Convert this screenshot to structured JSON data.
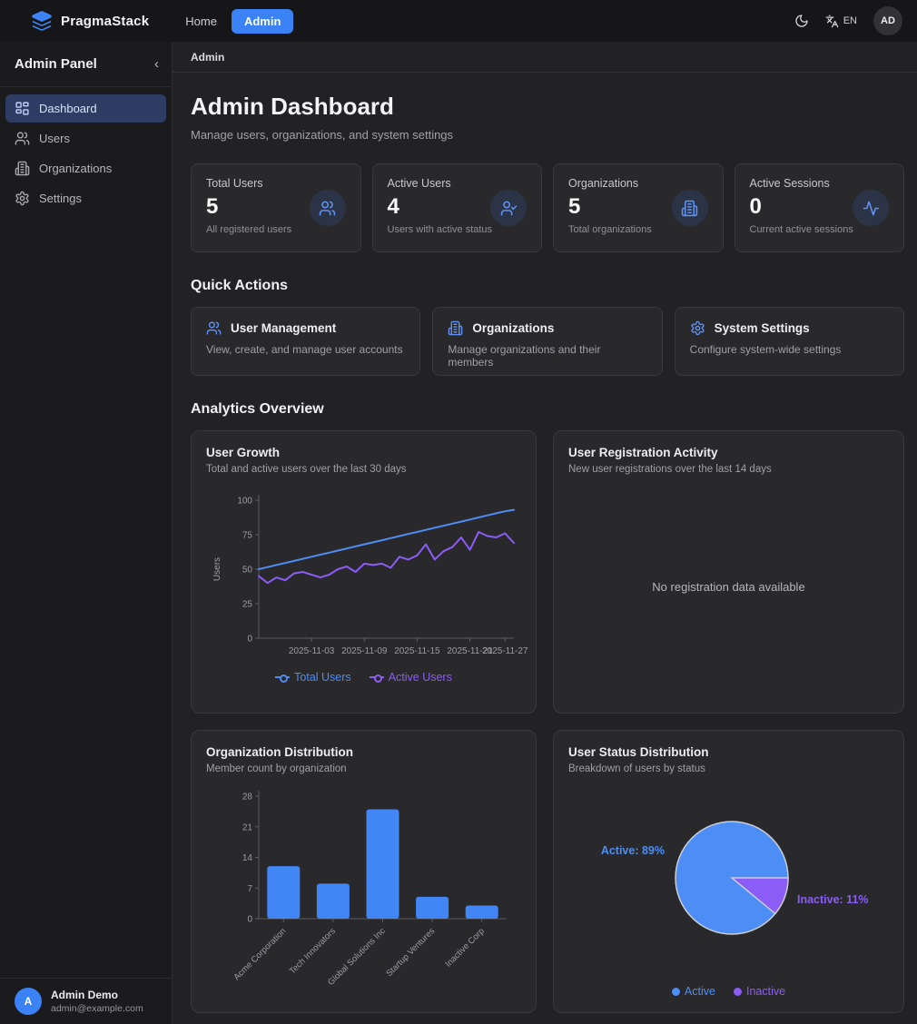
{
  "colors": {
    "accent": "#3b82f6",
    "chart_blue": "#4e8cf2",
    "chart_purple": "#8b5cf6",
    "bar_blue": "#4285f4",
    "pie_stroke": "#c9cdd6"
  },
  "navbar": {
    "brand": "PragmaStack",
    "links": [
      {
        "label": "Home",
        "active": false
      },
      {
        "label": "Admin",
        "active": true
      }
    ],
    "language": "EN",
    "avatar_initials": "AD"
  },
  "sidebar": {
    "title": "Admin Panel",
    "collapse_icon": "‹",
    "items": [
      {
        "label": "Dashboard",
        "icon": "dashboard-grid-icon",
        "active": true
      },
      {
        "label": "Users",
        "icon": "users-icon",
        "active": false
      },
      {
        "label": "Organizations",
        "icon": "building-icon",
        "active": false
      },
      {
        "label": "Settings",
        "icon": "gear-icon",
        "active": false
      }
    ],
    "user": {
      "initial": "A",
      "name": "Admin Demo",
      "email": "admin@example.com"
    }
  },
  "breadcrumb": "Admin",
  "header": {
    "title": "Admin Dashboard",
    "subtitle": "Manage users, organizations, and system settings"
  },
  "stats": [
    {
      "label": "Total Users",
      "value": "5",
      "caption": "All registered users",
      "icon": "users-icon"
    },
    {
      "label": "Active Users",
      "value": "4",
      "caption": "Users with active status",
      "icon": "user-check-icon"
    },
    {
      "label": "Organizations",
      "value": "5",
      "caption": "Total organizations",
      "icon": "building-icon"
    },
    {
      "label": "Active Sessions",
      "value": "0",
      "caption": "Current active sessions",
      "icon": "activity-icon"
    }
  ],
  "quick_actions": {
    "heading": "Quick Actions",
    "cards": [
      {
        "title": "User Management",
        "caption": "View, create, and manage user accounts",
        "icon": "users-icon"
      },
      {
        "title": "Organizations",
        "caption": "Manage organizations and their members",
        "icon": "building-icon"
      },
      {
        "title": "System Settings",
        "caption": "Configure system-wide settings",
        "icon": "gear-icon"
      }
    ]
  },
  "analytics_heading": "Analytics Overview",
  "chart_data": [
    {
      "type": "line",
      "title": "User Growth",
      "subtitle": "Total and active users over the last 30 days",
      "ylabel": "Users",
      "ylim": [
        0,
        100
      ],
      "yticks": [
        0,
        25,
        50,
        75,
        100
      ],
      "xticks": [
        "2025-11-03",
        "2025-11-09",
        "2025-11-15",
        "2025-11-21",
        "2025-11-27"
      ],
      "xtick_positions": [
        6,
        12,
        18,
        24,
        28
      ],
      "legend_position": "bottom",
      "grid": false,
      "series": [
        {
          "name": "Total Users",
          "color": "#4e8cf2",
          "values": [
            50,
            51.5,
            53,
            54.5,
            56,
            57.5,
            59,
            60.5,
            62,
            63.5,
            65,
            66.5,
            68,
            69.5,
            71,
            72.5,
            74,
            75.5,
            77,
            78.5,
            80,
            81.5,
            83,
            84.5,
            86,
            87.5,
            89,
            90.5,
            92,
            93
          ]
        },
        {
          "name": "Active Users",
          "color": "#8b5cf6",
          "values": [
            45,
            40,
            44,
            42,
            47,
            48,
            46,
            44,
            46,
            50,
            52,
            48,
            54,
            53,
            54,
            51,
            59,
            57,
            60,
            68,
            57,
            63,
            66,
            73,
            64,
            77,
            74,
            73,
            76,
            69
          ]
        }
      ]
    },
    {
      "type": "empty",
      "title": "User Registration Activity",
      "subtitle": "New user registrations over the last 14 days",
      "empty_text": "No registration data available"
    },
    {
      "type": "bar",
      "title": "Organization Distribution",
      "subtitle": "Member count by organization",
      "categories": [
        "Acme Corporation",
        "Tech Innovators",
        "Global Solutions Inc",
        "Startup Ventures",
        "Inactive Corp"
      ],
      "values": [
        12,
        8,
        25,
        5,
        3
      ],
      "ylim": [
        0,
        28
      ],
      "yticks": [
        0,
        7,
        14,
        21,
        28
      ],
      "bar_color": "#4285f4",
      "grid": false
    },
    {
      "type": "pie",
      "title": "User Status Distribution",
      "subtitle": "Breakdown of users by status",
      "slices": [
        {
          "label": "Active",
          "pct": 89,
          "color": "#4d8df6"
        },
        {
          "label": "Inactive",
          "pct": 11,
          "color": "#8b5cf6"
        }
      ],
      "labels": [
        "Active: 89%",
        "Inactive: 11%"
      ],
      "legend": [
        "Active",
        "Inactive"
      ],
      "legend_position": "bottom"
    }
  ]
}
